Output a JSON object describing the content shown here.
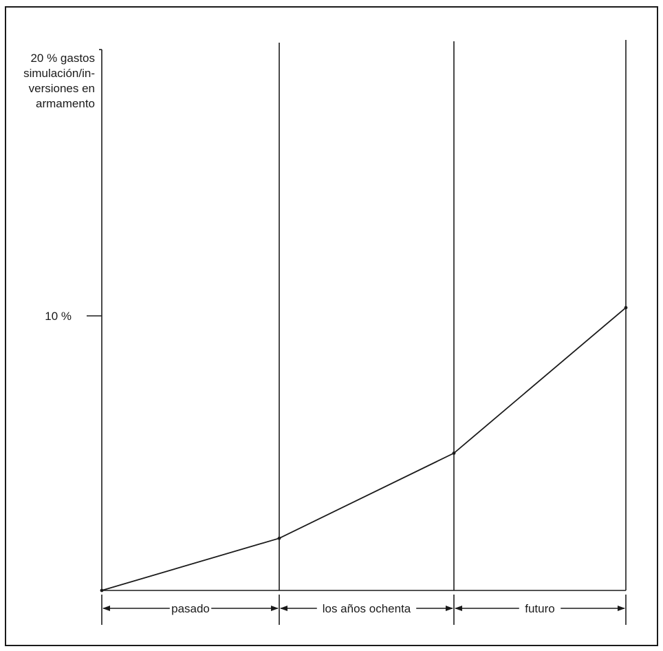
{
  "chart_data": {
    "type": "line",
    "ylabel_lines": [
      "20 % gastos",
      "simulación/in-",
      "versiones en",
      "armamento"
    ],
    "ylim": [
      0,
      20
    ],
    "y_ticks": [
      {
        "value": 10,
        "label": "10 %"
      }
    ],
    "x_boundaries": [
      0,
      1,
      2,
      3
    ],
    "periods": [
      {
        "label": "pasado",
        "from": 0,
        "to": 1
      },
      {
        "label": "los años ochenta",
        "from": 1,
        "to": 2
      },
      {
        "label": "futuro",
        "from": 2,
        "to": 3
      }
    ],
    "series": [
      {
        "x": [
          0,
          1,
          2,
          3
        ],
        "values": [
          0,
          1.9,
          5,
          10.3
        ]
      }
    ],
    "grid": false,
    "line_color": "#1a1a1a"
  }
}
